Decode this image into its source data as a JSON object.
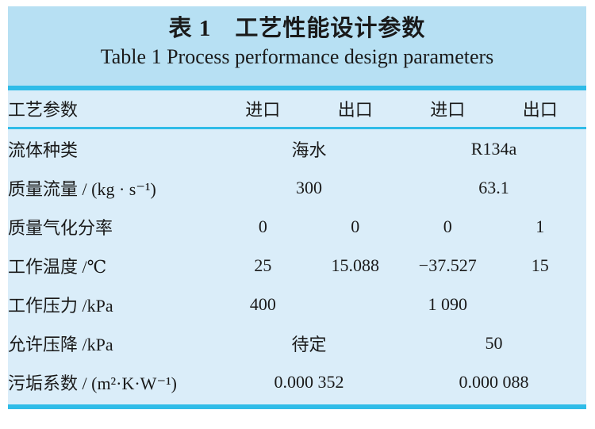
{
  "title": {
    "zh": "表 1　工艺性能设计参数",
    "en": "Table 1  Process performance design parameters"
  },
  "colors": {
    "title_band_bg": "#b7e0f3",
    "table_body_bg": "#daedf9",
    "rule_cyan": "#2fbce8",
    "text": "#1a1a1a",
    "page_bg": "#ffffff"
  },
  "table": {
    "header": {
      "param": "工艺参数",
      "col1": "进口",
      "col2": "出口",
      "col3": "进口",
      "col4": "出口"
    },
    "rows": [
      {
        "label": "流体种类",
        "cells": [
          {
            "text": "海水",
            "span": 2
          },
          {
            "text": "R134a",
            "span": 2
          }
        ]
      },
      {
        "label": "质量流量 / (kg · s⁻¹)",
        "cells": [
          {
            "text": "300",
            "span": 2
          },
          {
            "text": "63.1",
            "span": 2
          }
        ]
      },
      {
        "label": "质量气化分率",
        "cells": [
          {
            "text": "0"
          },
          {
            "text": "0"
          },
          {
            "text": "0"
          },
          {
            "text": "1"
          }
        ]
      },
      {
        "label": "工作温度 /℃",
        "cells": [
          {
            "text": "25"
          },
          {
            "text": "15.088"
          },
          {
            "text": "−37.527"
          },
          {
            "text": "15"
          }
        ]
      },
      {
        "label": "工作压力 /kPa",
        "cells": [
          {
            "text": "400"
          },
          {
            "text": ""
          },
          {
            "text": "1 090"
          },
          {
            "text": ""
          }
        ]
      },
      {
        "label": "允许压降 /kPa",
        "cells": [
          {
            "text": "待定",
            "span": 2
          },
          {
            "text": "50",
            "span": 2
          }
        ]
      },
      {
        "label": "污垢系数 / (m²·K·W⁻¹)",
        "cells": [
          {
            "text": "0.000 352",
            "span": 2
          },
          {
            "text": "0.000 088",
            "span": 2
          }
        ]
      }
    ]
  }
}
